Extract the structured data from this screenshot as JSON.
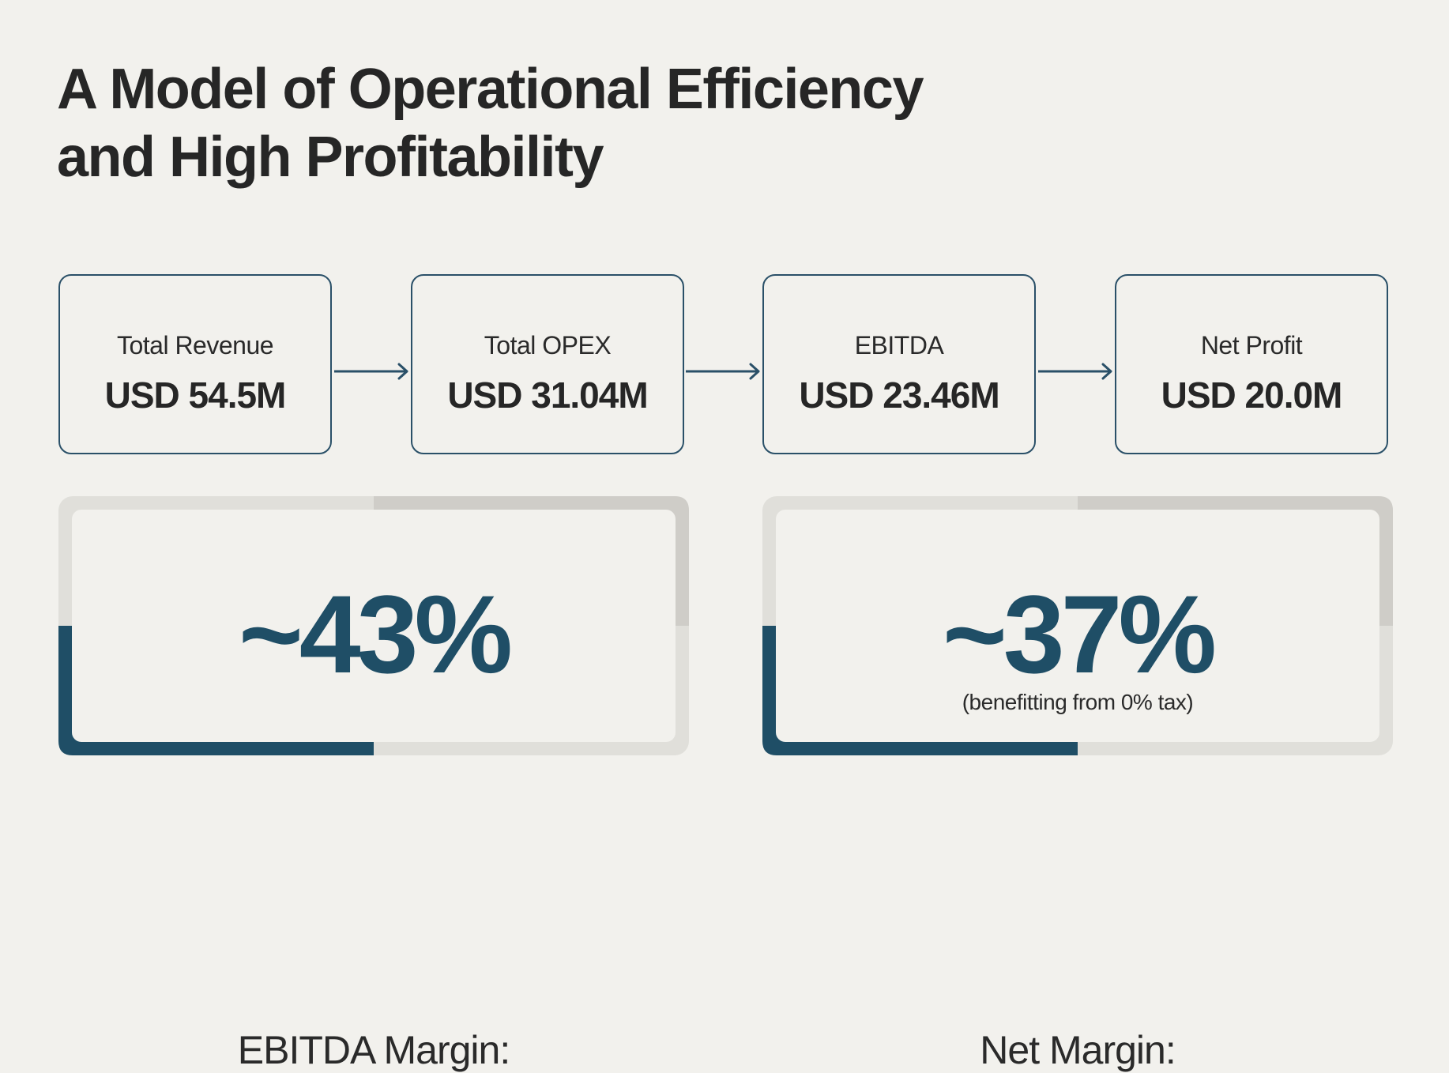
{
  "title_lines": [
    "A Model of Operational Efficiency",
    "and High Profitability"
  ],
  "flow": [
    {
      "label": "Total Revenue",
      "value": "USD 54.5M"
    },
    {
      "label": "Total OPEX",
      "value": "USD 31.04M"
    },
    {
      "label": "EBITDA",
      "value": "USD 23.46M"
    },
    {
      "label": "Net Profit",
      "value": "USD 20.0M"
    }
  ],
  "margins": [
    {
      "label": "EBITDA Margin:",
      "value": "~43%",
      "note": ""
    },
    {
      "label": "Net Margin:",
      "value": "~37%",
      "note": "(benefitting from 0% tax)"
    }
  ],
  "colors": {
    "accent": "#1f4e66",
    "background": "#f2f1ed",
    "frame_light": "#e0dfda",
    "frame_dark": "#cfcdc8"
  }
}
